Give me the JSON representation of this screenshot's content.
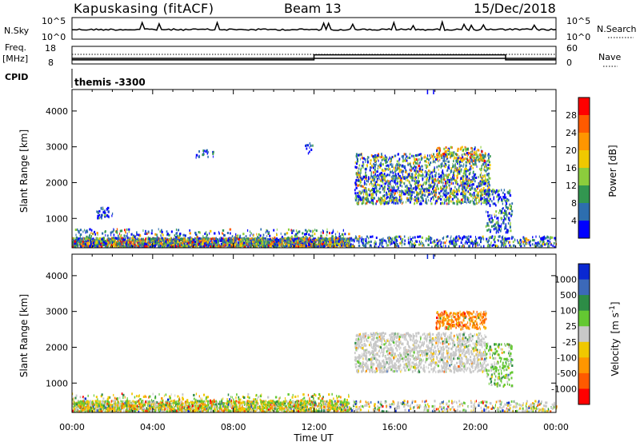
{
  "header": {
    "station": "Kapuskasing (fitACF)",
    "beam": "Beam 13",
    "date": "15/Dec/2018"
  },
  "nsky_panel": {
    "left_label": "N.Sky",
    "right_label": "N.Search",
    "left_ticks": [
      "10^5",
      "10^0"
    ],
    "right_ticks": [
      "10^5",
      "10^0"
    ]
  },
  "freq_panel": {
    "left_label_1": "Freq.",
    "left_label_2": "[MHz]",
    "left_ticks": [
      "18",
      "8"
    ],
    "right_ticks": [
      "60",
      "0"
    ],
    "right_label": "Nave",
    "freq_value_mhz": 10,
    "nave_before_1200": 14,
    "nave_1200_2150": 31,
    "nave_after_2150": 14
  },
  "cpid": {
    "label": "CPID",
    "value": "themis -3300"
  },
  "x_axis": {
    "label": "Time UT",
    "ticks": [
      "00:00",
      "04:00",
      "08:00",
      "12:00",
      "16:00",
      "20:00",
      "00:00"
    ],
    "range_hours": [
      0,
      24
    ]
  },
  "power_colorbar": {
    "label": "Power [dB]",
    "ticks": [
      "28",
      "24",
      "20",
      "16",
      "12",
      "8",
      "4"
    ],
    "colors": [
      "#ff0000",
      "#ff5a00",
      "#ff9600",
      "#f0c800",
      "#8ccd3c",
      "#329650",
      "#2d6eaf",
      "#0000ff"
    ]
  },
  "velocity_colorbar": {
    "label": "Velocity",
    "unit_base": "[m s",
    "unit_exp": "-1",
    "unit_close": "]",
    "ticks": [
      "1000",
      "500",
      "100",
      "25",
      "-25",
      "-100",
      "-500",
      "-1000"
    ],
    "colors": [
      "#0a28d2",
      "#3c69b9",
      "#2d8c46",
      "#64c832",
      "#c8c8c8",
      "#f0c800",
      "#ff9600",
      "#ff5a00",
      "#ff0000"
    ]
  },
  "chart_data": [
    {
      "type": "heatmap",
      "title": "",
      "xlabel": "Time UT",
      "ylabel": "Slant Range [km]",
      "xlim": [
        0,
        24
      ],
      "ylim": [
        180,
        4600
      ],
      "yticks": [
        1000,
        2000,
        3000,
        4000
      ],
      "colorbar": "Power [dB]",
      "regions": [
        {
          "t": [
            0.0,
            13.8
          ],
          "r": [
            200,
            600
          ],
          "value": "8-28 dB, dense near-range scatter"
        },
        {
          "t": [
            14.0,
            20.7
          ],
          "r": [
            1400,
            2800
          ],
          "value": "8-20 dB, diagonal bands"
        },
        {
          "t": [
            18.0,
            20.5
          ],
          "r": [
            2600,
            3000
          ],
          "value": "16-24 dB"
        },
        {
          "t": [
            20.5,
            21.8
          ],
          "r": [
            600,
            1800
          ],
          "value": "8-16 dB"
        }
      ]
    },
    {
      "type": "heatmap",
      "title": "",
      "xlabel": "Time UT",
      "ylabel": "Slant Range [km]",
      "xlim": [
        0,
        24
      ],
      "ylim": [
        180,
        4600
      ],
      "yticks": [
        1000,
        2000,
        3000,
        4000
      ],
      "colorbar": "Velocity [m s-1]",
      "regions": [
        {
          "t": [
            0.0,
            13.8
          ],
          "r": [
            200,
            600
          ],
          "value": "-100 to 100 m/s, mostly green/yellow"
        },
        {
          "t": [
            14.0,
            20.5
          ],
          "r": [
            1300,
            2400
          ],
          "value": "-25 to 25 m/s (ground scatter, grey)"
        },
        {
          "t": [
            18.0,
            20.5
          ],
          "r": [
            2500,
            3000
          ],
          "value": "-100 to -500 m/s (orange)"
        },
        {
          "t": [
            20.5,
            21.8
          ],
          "r": [
            900,
            2100
          ],
          "value": "25 to 100 m/s (green)"
        }
      ]
    }
  ]
}
